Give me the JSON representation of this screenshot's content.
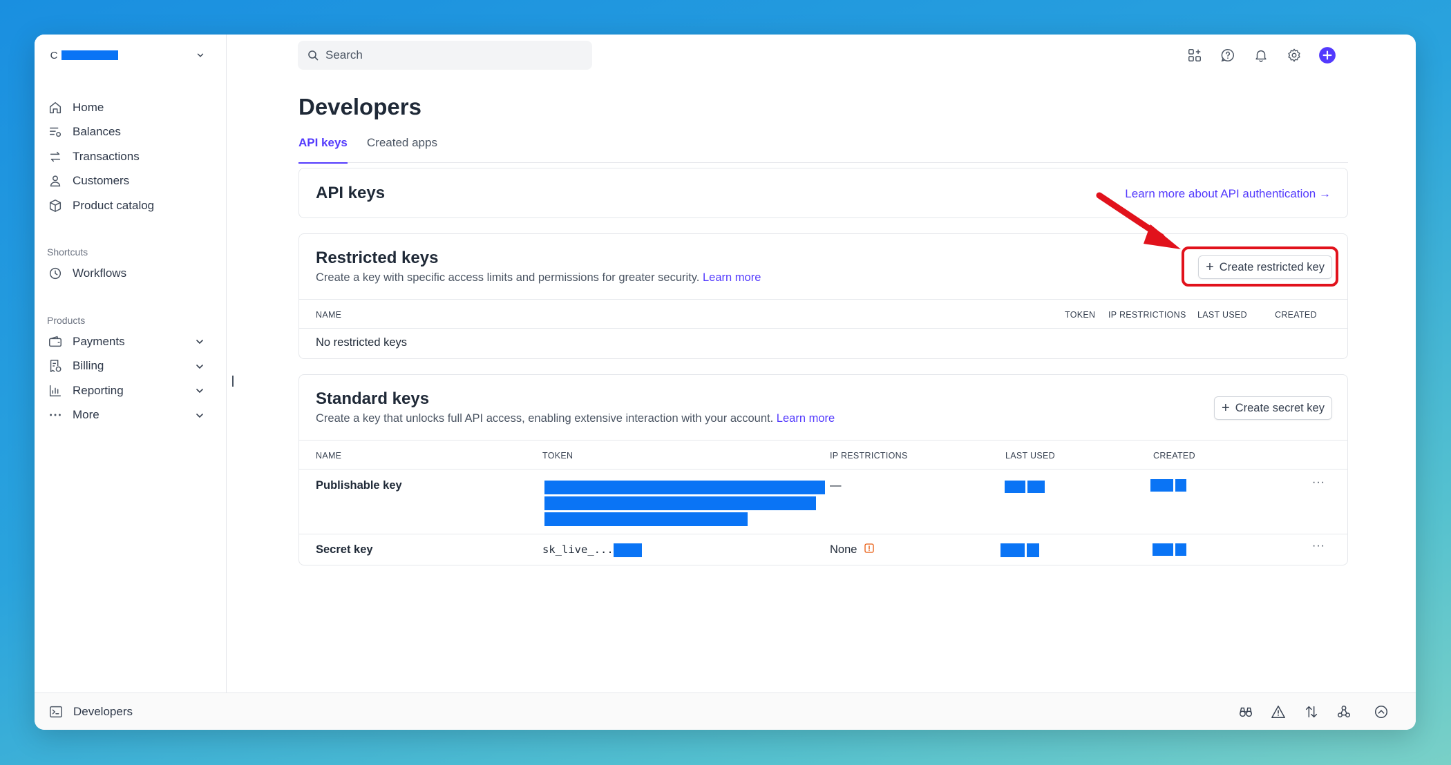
{
  "sidebar": {
    "account_letter": "C",
    "nav": [
      {
        "label": "Home",
        "icon": "home-icon"
      },
      {
        "label": "Balances",
        "icon": "balances-icon"
      },
      {
        "label": "Transactions",
        "icon": "transactions-icon"
      },
      {
        "label": "Customers",
        "icon": "customers-icon"
      },
      {
        "label": "Product catalog",
        "icon": "product-catalog-icon"
      }
    ],
    "shortcuts_label": "Shortcuts",
    "shortcuts": [
      {
        "label": "Workflows",
        "icon": "workflows-icon"
      }
    ],
    "products_label": "Products",
    "products": [
      {
        "label": "Payments",
        "icon": "payments-icon"
      },
      {
        "label": "Billing",
        "icon": "billing-icon"
      },
      {
        "label": "Reporting",
        "icon": "reporting-icon"
      },
      {
        "label": "More",
        "icon": "more-icon"
      }
    ]
  },
  "topbar": {
    "search_placeholder": "Search",
    "icons": [
      "apps-icon",
      "help-icon",
      "bell-icon",
      "gear-icon",
      "create-plus-icon"
    ]
  },
  "page": {
    "title": "Developers",
    "tabs": [
      {
        "label": "API keys",
        "active": true
      },
      {
        "label": "Created apps",
        "active": false
      }
    ]
  },
  "api_card": {
    "title": "API keys",
    "link": "Learn more about API authentication →"
  },
  "restricted": {
    "title": "Restricted keys",
    "desc": "Create a key with specific access limits and permissions for greater security.",
    "learn_more": "Learn more",
    "button": "Create restricted key",
    "columns": [
      "NAME",
      "TOKEN",
      "IP RESTRICTIONS",
      "LAST USED",
      "CREATED"
    ],
    "empty": "No restricted keys"
  },
  "standard": {
    "title": "Standard keys",
    "desc": "Create a key that unlocks full API access, enabling extensive interaction with your account.",
    "learn_more": "Learn more",
    "button": "Create secret key",
    "columns": [
      "NAME",
      "TOKEN",
      "IP RESTRICTIONS",
      "LAST USED",
      "CREATED"
    ],
    "rows": [
      {
        "name": "Publishable key",
        "token": "",
        "ip": "—"
      },
      {
        "name": "Secret key",
        "token": "sk_live_...",
        "ip": "None"
      }
    ]
  },
  "bottom": {
    "label": "Developers"
  },
  "colors": {
    "accent": "#533afd",
    "redaction": "#0a74f5",
    "annotation": "#e1121c"
  }
}
